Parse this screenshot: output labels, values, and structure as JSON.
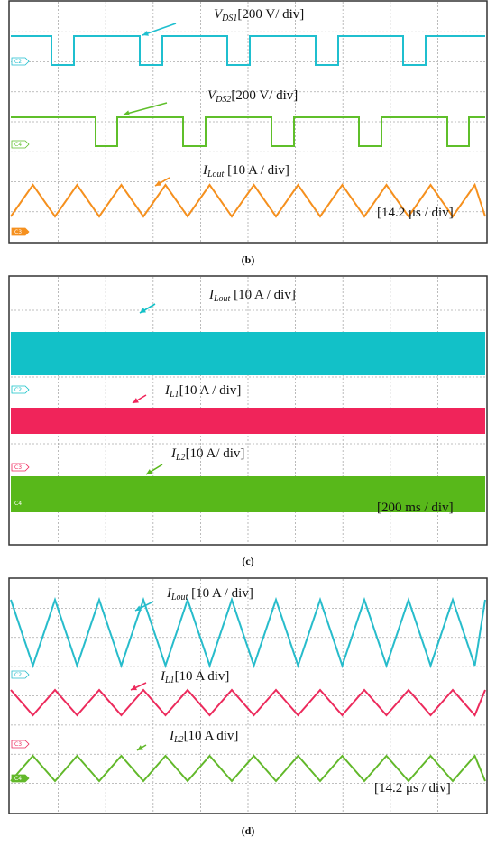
{
  "panels": [
    {
      "caption": "(b)",
      "timebase": "[14.2 μs / div]",
      "traces": [
        {
          "symbol": "V",
          "sub": "DS1",
          "scale": "[200 V/ div]",
          "channel": "C2",
          "color": "#1fbfcf"
        },
        {
          "symbol": "V",
          "sub": "DS2",
          "scale": "[200 V/ div]",
          "channel": "C4",
          "color": "#5fbf2a"
        },
        {
          "symbol": "I",
          "sub": "Lout",
          "scale": " [10 A / div]",
          "channel": "C3",
          "color": "#f5901e"
        }
      ]
    },
    {
      "caption": "(c)",
      "timebase": "[200 ms / div]",
      "traces": [
        {
          "symbol": "I",
          "sub": "Lout",
          "scale": " [10 A / div]",
          "channel": "C2",
          "color": "#12c1c8"
        },
        {
          "symbol": "I",
          "sub": "L1",
          "scale": "[10 A / div]",
          "channel": "C3",
          "color": "#f0245a"
        },
        {
          "symbol": "I",
          "sub": "L2",
          "scale": "[10 A/  div]",
          "channel": "C4",
          "color": "#58b81a"
        }
      ]
    },
    {
      "caption": "(d)",
      "timebase": "[14.2 μs / div]",
      "traces": [
        {
          "symbol": "I",
          "sub": "Lout",
          "scale": " [10 A / div]",
          "channel": "C2",
          "color": "#27bccb"
        },
        {
          "symbol": "I",
          "sub": "L1",
          "scale": "[10 A  div]",
          "channel": "C3",
          "color": "#ec2a5c"
        },
        {
          "symbol": "I",
          "sub": "L2",
          "scale": "[10 A  div]",
          "channel": "C4",
          "color": "#62b82a"
        }
      ]
    }
  ]
}
